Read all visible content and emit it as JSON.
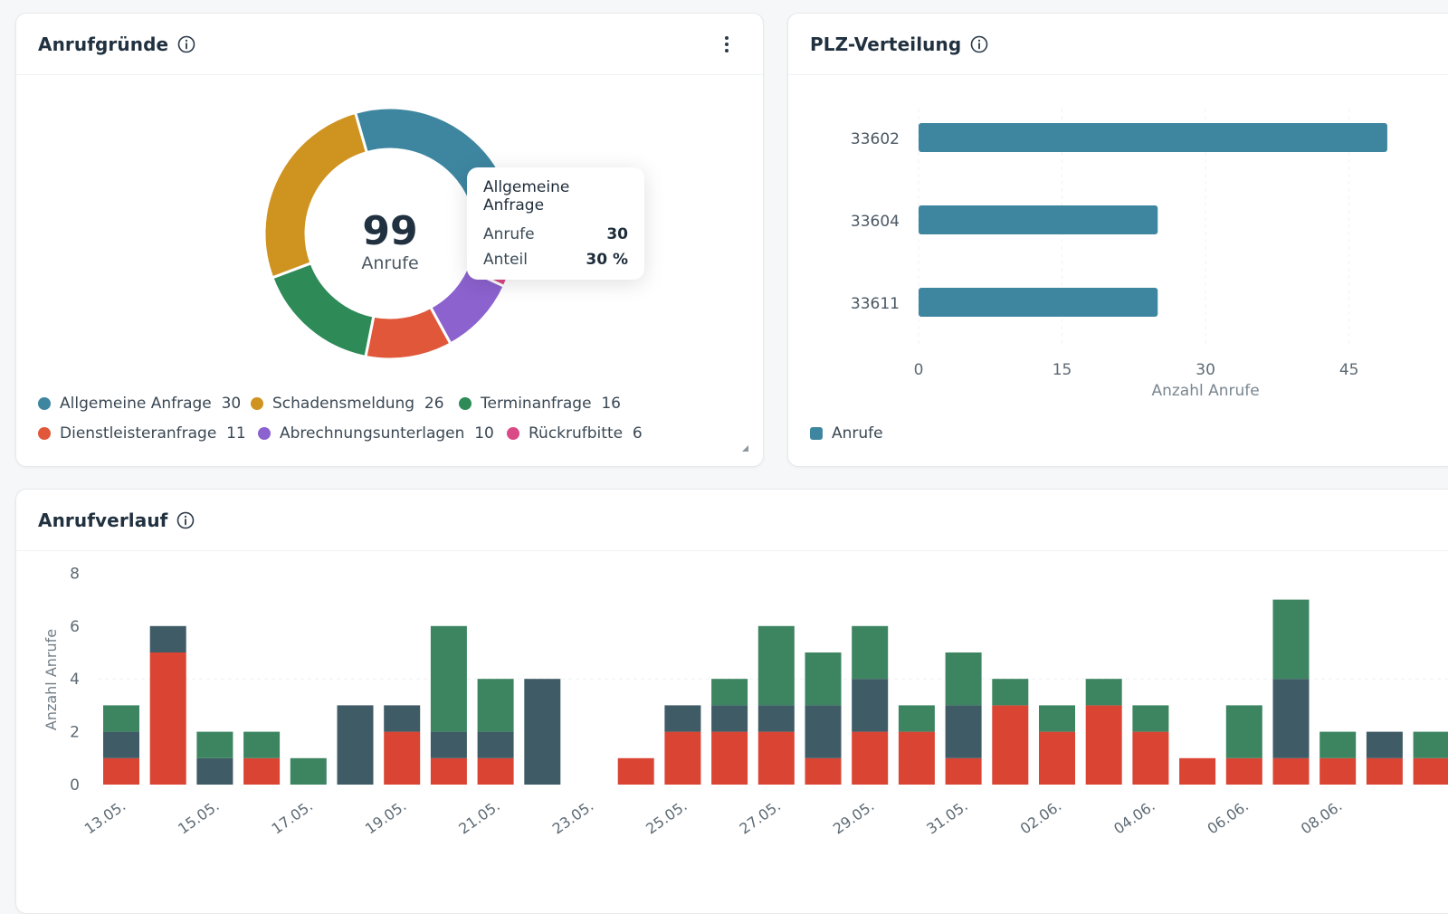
{
  "donut_card": {
    "title": "Anrufgründe",
    "center_value": "99",
    "center_label": "Anrufe",
    "tooltip": {
      "title": "Allgemeine Anfrage",
      "rows": [
        {
          "label": "Anrufe",
          "value": "30"
        },
        {
          "label": "Anteil",
          "value": "30 %"
        }
      ]
    },
    "legend": [
      {
        "label": "Allgemeine Anfrage",
        "count": "30"
      },
      {
        "label": "Schadensmeldung",
        "count": "26"
      },
      {
        "label": "Terminanfrage",
        "count": "16"
      },
      {
        "label": "Dienstleisteranfrage",
        "count": "11"
      },
      {
        "label": "Abrechnungsunterlagen",
        "count": "10"
      },
      {
        "label": "Rückrufbitte",
        "count": "6"
      }
    ]
  },
  "plz_card": {
    "title": "PLZ-Verteilung",
    "legend_label": "Anrufe"
  },
  "history_card": {
    "title": "Anrufverlauf"
  },
  "colors": {
    "allgemeine": "#3e86a0",
    "schaden": "#cf9320",
    "termin": "#2e8b57",
    "dienstleister": "#e0573a",
    "abrechnung": "#8c62cf",
    "rueckruf": "#d94a86",
    "bar_blue": "#3e86a0",
    "stack_red": "#d94433",
    "stack_dark": "#3f5b66",
    "stack_green": "#3c8560"
  },
  "chart_data": [
    {
      "type": "pie",
      "title": "Anrufgründe",
      "categories": [
        "Allgemeine Anfrage",
        "Schadensmeldung",
        "Terminanfrage",
        "Dienstleisteranfrage",
        "Abrechnungsunterlagen",
        "Rückrufbitte"
      ],
      "values": [
        30,
        26,
        16,
        11,
        10,
        6
      ],
      "total": 99
    },
    {
      "type": "bar",
      "title": "PLZ-Verteilung",
      "orientation": "horizontal",
      "categories": [
        "33602",
        "33604",
        "33611"
      ],
      "series": [
        {
          "name": "Anrufe",
          "values": [
            49,
            25,
            25
          ]
        }
      ],
      "xlabel": "Anzahl Anrufe",
      "xticks": [
        "0",
        "15",
        "30",
        "45"
      ],
      "xlim": [
        0,
        50
      ],
      "grid": true
    },
    {
      "type": "bar",
      "stacked": true,
      "title": "Anrufverlauf",
      "ylabel": "Anzahl Anrufe",
      "ylim": [
        0,
        8
      ],
      "yticks": [
        "0",
        "2",
        "4",
        "6",
        "8"
      ],
      "x_tick_labels": [
        "13.05.",
        "15.05.",
        "17.05.",
        "19.05.",
        "21.05.",
        "23.05.",
        "25.05.",
        "27.05.",
        "29.05.",
        "31.05.",
        "02.06.",
        "04.06.",
        "06.06.",
        "08.06."
      ],
      "categories": [
        "13.05.",
        "14.05.",
        "15.05.",
        "16.05.",
        "17.05.",
        "18.05.",
        "19.05.",
        "20.05.",
        "21.05.",
        "22.05.",
        "23.05.",
        "24.05.",
        "25.05.",
        "26.05.",
        "27.05.",
        "28.05.",
        "29.05.",
        "30.05.",
        "31.05.",
        "01.06.",
        "02.06.",
        "03.06.",
        "04.06.",
        "05.06.",
        "06.06.",
        "07.06.",
        "08.06.",
        "09.06.",
        "10.06."
      ],
      "series": [
        {
          "values": [
            1,
            5,
            0,
            1,
            0,
            0,
            2,
            1,
            1,
            0,
            0,
            1,
            2,
            2,
            2,
            1,
            2,
            2,
            1,
            3,
            2,
            3,
            2,
            1,
            1,
            1,
            1,
            1,
            1
          ]
        },
        {
          "values": [
            1,
            1,
            1,
            0,
            0,
            3,
            1,
            1,
            1,
            4,
            0,
            0,
            1,
            1,
            1,
            2,
            2,
            0,
            2,
            0,
            0,
            0,
            0,
            0,
            0,
            3,
            0,
            1,
            0
          ]
        },
        {
          "values": [
            1,
            0,
            1,
            1,
            1,
            0,
            0,
            4,
            2,
            0,
            0,
            0,
            0,
            1,
            3,
            2,
            2,
            1,
            2,
            1,
            1,
            1,
            1,
            0,
            2,
            3,
            1,
            0,
            1
          ]
        }
      ]
    }
  ]
}
